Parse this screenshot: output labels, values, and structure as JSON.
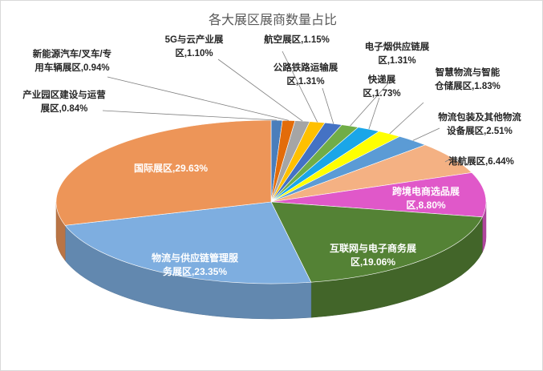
{
  "chart_data": {
    "type": "pie",
    "title": "各大展区展商数量占比",
    "slices": [
      {
        "label": [
          "产业园区建设与运营",
          "展区,0.84%"
        ],
        "value": 0.84,
        "color": "#4a7ebb"
      },
      {
        "label": [
          "新能源汽车/叉车/专",
          "用车辆展区,0.94%"
        ],
        "value": 0.94,
        "color": "#e36c0a"
      },
      {
        "label": [
          "5G与云产业展",
          "区,1.10%"
        ],
        "value": 1.1,
        "color": "#a5a5a5"
      },
      {
        "label": [
          "航空展区,1.15%"
        ],
        "value": 1.15,
        "color": "#ffc000"
      },
      {
        "label": [
          "公路铁路运输展",
          "区,1.31%"
        ],
        "value": 1.31,
        "color": "#4472c4"
      },
      {
        "label": [
          "电子烟供应链展",
          "区,1.31%"
        ],
        "value": 1.31,
        "color": "#70ad47"
      },
      {
        "label": [
          "快递展",
          "区,1.73%"
        ],
        "value": 1.73,
        "color": "#1aa6e8"
      },
      {
        "label": [
          "智慧物流与智能",
          "仓储展区,1.83%"
        ],
        "value": 1.83,
        "color": "#ffff00"
      },
      {
        "label": [
          "物流包装及其他物流",
          "设备展区,2.51%"
        ],
        "value": 2.51,
        "color": "#5b9bd5"
      },
      {
        "label": [
          "港航展区,6.44%"
        ],
        "value": 6.44,
        "color": "#f4b183"
      },
      {
        "label": [
          "跨境电商选品展",
          "区,8.80%"
        ],
        "value": 8.8,
        "color": "#e058c9"
      },
      {
        "label": [
          "互联网与电子商务展",
          "区,19.06%"
        ],
        "value": 19.06,
        "color": "#548235"
      },
      {
        "label": [
          "物流与供应链管理服",
          "务展区,23.35%"
        ],
        "value": 23.35,
        "color": "#7eaee0"
      },
      {
        "label": [
          "国际展区,29.63%"
        ],
        "value": 29.63,
        "color": "#ed9558"
      }
    ]
  }
}
